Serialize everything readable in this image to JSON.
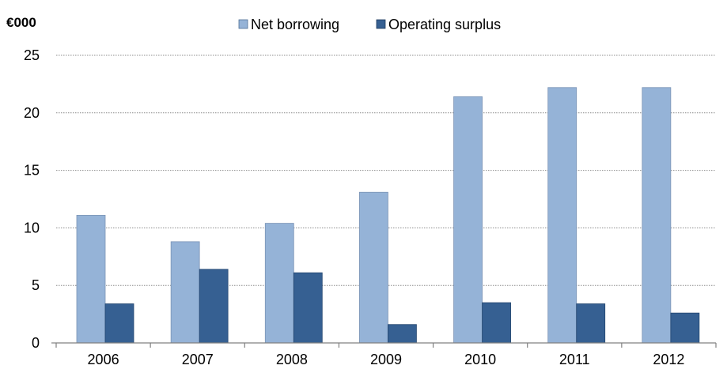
{
  "chart_data": {
    "type": "bar",
    "ylabel": "€000",
    "categories": [
      "2006",
      "2007",
      "2008",
      "2009",
      "2010",
      "2011",
      "2012"
    ],
    "series": [
      {
        "name": "Net borrowing",
        "color": "#95b3d7",
        "values": [
          11.1,
          8.8,
          10.4,
          13.1,
          21.4,
          22.2,
          22.2
        ]
      },
      {
        "name": "Operating surplus",
        "color": "#366092",
        "values": [
          3.4,
          6.4,
          6.1,
          1.6,
          3.5,
          3.4,
          2.6
        ]
      }
    ],
    "ylim": [
      0,
      25
    ],
    "yticks": [
      "0",
      "5",
      "10",
      "15",
      "20",
      "25"
    ],
    "grid": true,
    "legend_position": "top"
  }
}
